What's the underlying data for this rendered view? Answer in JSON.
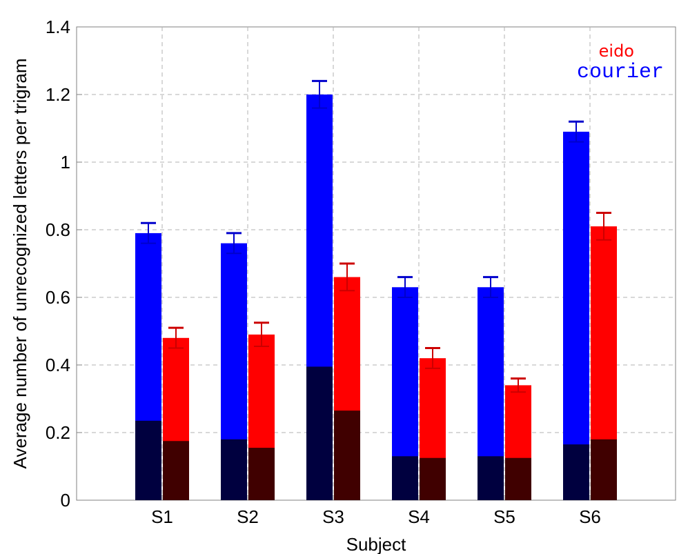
{
  "chart_data": {
    "type": "bar",
    "categories": [
      "S1",
      "S2",
      "S3",
      "S4",
      "S5",
      "S6"
    ],
    "series": [
      {
        "name": "courier",
        "color": "#0000ff",
        "dark_color": "#00003f",
        "values": [
          0.79,
          0.76,
          1.2,
          0.63,
          0.63,
          1.09
        ],
        "errors": [
          0.03,
          0.03,
          0.04,
          0.03,
          0.03,
          0.03
        ],
        "bottom_values": [
          0.235,
          0.18,
          0.395,
          0.13,
          0.13,
          0.165
        ]
      },
      {
        "name": "eido",
        "color": "#ff0000",
        "dark_color": "#400000",
        "values": [
          0.48,
          0.49,
          0.66,
          0.42,
          0.34,
          0.81
        ],
        "errors": [
          0.03,
          0.035,
          0.04,
          0.03,
          0.02,
          0.04
        ],
        "bottom_values": [
          0.175,
          0.155,
          0.265,
          0.125,
          0.125,
          0.18
        ]
      }
    ],
    "xlabel": "Subject",
    "ylabel": "Average number of unrecognized letters per trigram",
    "ylim": [
      0,
      1.4
    ],
    "yticks": [
      "0",
      "0.2",
      "0.4",
      "0.6",
      "0.8",
      "1",
      "1.2",
      "1.4"
    ],
    "grid": true,
    "legend_placement": "top-right",
    "legend": [
      "eido",
      "courier"
    ]
  }
}
